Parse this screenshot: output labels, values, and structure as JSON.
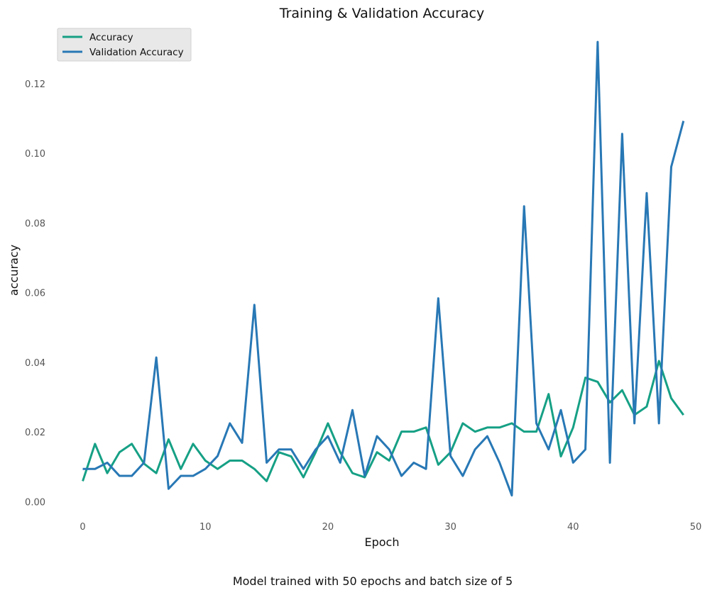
{
  "chart_data": {
    "type": "line",
    "title": "Training & Validation Accuracy",
    "xlabel": "Epoch",
    "ylabel": "accuracy",
    "caption": "Model trained with 50 epochs and batch size of 5",
    "xlim": [
      -2,
      50
    ],
    "ylim": [
      -0.0045,
      0.137
    ],
    "xticks": [
      0,
      10,
      20,
      30,
      40,
      50
    ],
    "yticks": [
      0.0,
      0.02,
      0.04,
      0.06,
      0.08,
      0.1,
      0.12
    ],
    "ytick_labels": [
      "0.00",
      "0.02",
      "0.04",
      "0.06",
      "0.08",
      "0.10",
      "0.12"
    ],
    "grid": false,
    "legend": "top-left",
    "x": [
      0,
      1,
      2,
      3,
      4,
      5,
      6,
      7,
      8,
      9,
      10,
      11,
      12,
      13,
      14,
      15,
      16,
      17,
      18,
      19,
      20,
      21,
      22,
      23,
      24,
      25,
      26,
      27,
      28,
      29,
      30,
      31,
      32,
      33,
      34,
      35,
      36,
      37,
      38,
      39,
      40,
      41,
      42,
      43,
      44,
      45,
      46,
      47,
      48,
      49
    ],
    "series": [
      {
        "name": "Accuracy",
        "color": "#16a085",
        "values": [
          0.006,
          0.0167,
          0.0083,
          0.0143,
          0.0167,
          0.011,
          0.0083,
          0.018,
          0.0095,
          0.0167,
          0.0119,
          0.0095,
          0.0119,
          0.0119,
          0.0095,
          0.006,
          0.0143,
          0.0131,
          0.0071,
          0.0143,
          0.0226,
          0.0143,
          0.0083,
          0.0071,
          0.0143,
          0.0119,
          0.0202,
          0.0202,
          0.0214,
          0.0107,
          0.0143,
          0.0226,
          0.0202,
          0.0214,
          0.0214,
          0.0226,
          0.0202,
          0.0202,
          0.031,
          0.0131,
          0.0214,
          0.0357,
          0.0345,
          0.0286,
          0.0321,
          0.025,
          0.0274,
          0.0405,
          0.0298,
          0.025
        ]
      },
      {
        "name": "Validation Accuracy",
        "color": "#2878b5",
        "values": [
          0.0095,
          0.0095,
          0.0113,
          0.0075,
          0.0075,
          0.0113,
          0.0415,
          0.0038,
          0.0075,
          0.0075,
          0.0095,
          0.0132,
          0.0226,
          0.017,
          0.0566,
          0.0113,
          0.0151,
          0.0151,
          0.0095,
          0.0151,
          0.0189,
          0.0113,
          0.0264,
          0.0075,
          0.0189,
          0.0151,
          0.0075,
          0.0113,
          0.0095,
          0.0585,
          0.0132,
          0.0075,
          0.0151,
          0.0189,
          0.0113,
          0.0019,
          0.0849,
          0.0226,
          0.0151,
          0.0264,
          0.0113,
          0.0151,
          0.1321,
          0.0113,
          0.1057,
          0.0226,
          0.0887,
          0.0226,
          0.0962,
          0.1094
        ]
      }
    ]
  }
}
